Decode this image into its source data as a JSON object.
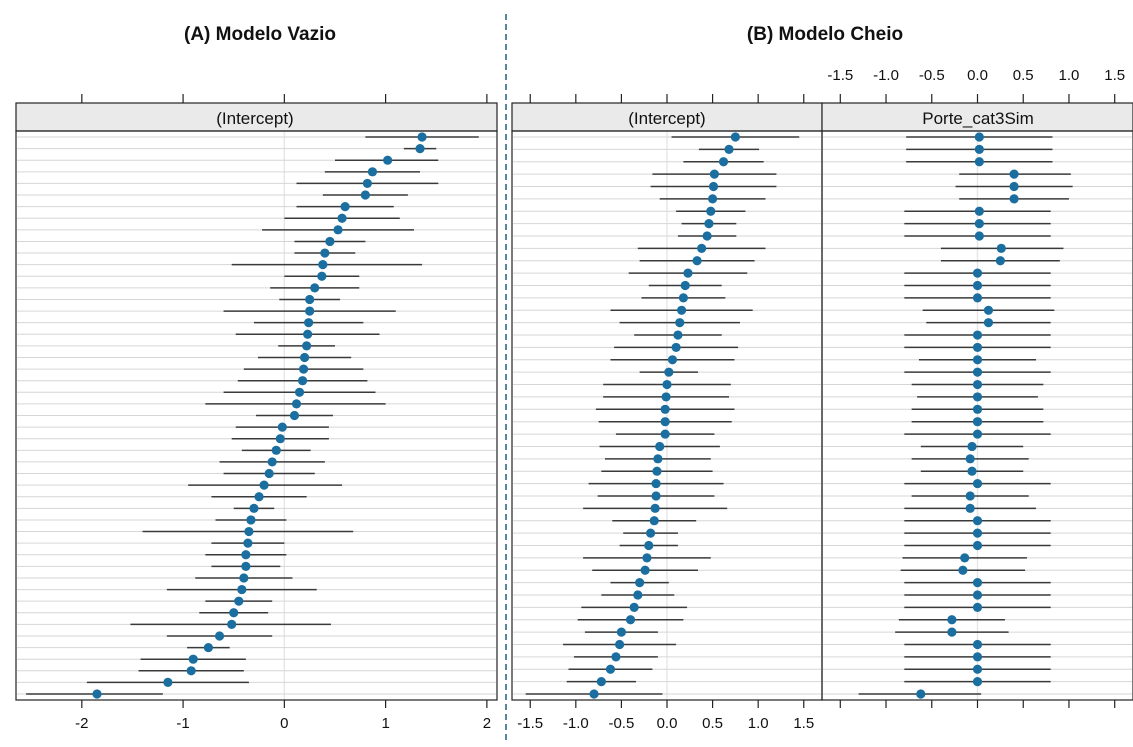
{
  "chart_data": [
    {
      "type": "dot-errorbar",
      "panel_label": "(A)  Modelo Vazio",
      "strip_labels": [
        "(Intercept)"
      ],
      "x_ticks": [
        -2,
        -1,
        0,
        1,
        2
      ],
      "xlim": [
        -2.65,
        2.1
      ],
      "x_ticks_position": "bottom",
      "top_axis_ticks": true,
      "grid": true,
      "points": {
        "(Intercept)": [
          {
            "est": 1.36,
            "lo": 0.8,
            "hi": 1.92
          },
          {
            "est": 1.34,
            "lo": 1.18,
            "hi": 1.5
          },
          {
            "est": 1.02,
            "lo": 0.5,
            "hi": 1.52
          },
          {
            "est": 0.87,
            "lo": 0.4,
            "hi": 1.34
          },
          {
            "est": 0.82,
            "lo": 0.12,
            "hi": 1.52
          },
          {
            "est": 0.8,
            "lo": 0.38,
            "hi": 1.22
          },
          {
            "est": 0.6,
            "lo": 0.12,
            "hi": 1.08
          },
          {
            "est": 0.57,
            "lo": 0.0,
            "hi": 1.14
          },
          {
            "est": 0.53,
            "lo": -0.22,
            "hi": 1.28
          },
          {
            "est": 0.45,
            "lo": 0.1,
            "hi": 0.8
          },
          {
            "est": 0.4,
            "lo": 0.1,
            "hi": 0.7
          },
          {
            "est": 0.38,
            "lo": -0.52,
            "hi": 1.36
          },
          {
            "est": 0.37,
            "lo": 0.0,
            "hi": 0.74
          },
          {
            "est": 0.3,
            "lo": -0.14,
            "hi": 0.74
          },
          {
            "est": 0.25,
            "lo": -0.05,
            "hi": 0.55
          },
          {
            "est": 0.25,
            "lo": -0.6,
            "hi": 1.1
          },
          {
            "est": 0.24,
            "lo": -0.3,
            "hi": 0.78
          },
          {
            "est": 0.23,
            "lo": -0.48,
            "hi": 0.94
          },
          {
            "est": 0.22,
            "lo": -0.06,
            "hi": 0.5
          },
          {
            "est": 0.2,
            "lo": -0.26,
            "hi": 0.66
          },
          {
            "est": 0.19,
            "lo": -0.4,
            "hi": 0.78
          },
          {
            "est": 0.18,
            "lo": -0.46,
            "hi": 0.82
          },
          {
            "est": 0.15,
            "lo": -0.6,
            "hi": 0.9
          },
          {
            "est": 0.12,
            "lo": -0.78,
            "hi": 1.0
          },
          {
            "est": 0.1,
            "lo": -0.28,
            "hi": 0.48
          },
          {
            "est": -0.02,
            "lo": -0.48,
            "hi": 0.44
          },
          {
            "est": -0.04,
            "lo": -0.52,
            "hi": 0.44
          },
          {
            "est": -0.08,
            "lo": -0.42,
            "hi": 0.26
          },
          {
            "est": -0.12,
            "lo": -0.64,
            "hi": 0.4
          },
          {
            "est": -0.15,
            "lo": -0.6,
            "hi": 0.3
          },
          {
            "est": -0.2,
            "lo": -0.95,
            "hi": 0.57
          },
          {
            "est": -0.25,
            "lo": -0.72,
            "hi": 0.22
          },
          {
            "est": -0.3,
            "lo": -0.5,
            "hi": -0.1
          },
          {
            "est": -0.33,
            "lo": -0.68,
            "hi": 0.02
          },
          {
            "est": -0.35,
            "lo": -1.4,
            "hi": 0.68
          },
          {
            "est": -0.36,
            "lo": -0.72,
            "hi": 0.0
          },
          {
            "est": -0.38,
            "lo": -0.78,
            "hi": 0.02
          },
          {
            "est": -0.38,
            "lo": -0.72,
            "hi": -0.04
          },
          {
            "est": -0.4,
            "lo": -0.88,
            "hi": 0.08
          },
          {
            "est": -0.42,
            "lo": -1.16,
            "hi": 0.32
          },
          {
            "est": -0.45,
            "lo": -0.78,
            "hi": -0.12
          },
          {
            "est": -0.5,
            "lo": -0.84,
            "hi": -0.16
          },
          {
            "est": -0.52,
            "lo": -1.52,
            "hi": 0.46
          },
          {
            "est": -0.64,
            "lo": -1.16,
            "hi": -0.12
          },
          {
            "est": -0.75,
            "lo": -0.96,
            "hi": -0.54
          },
          {
            "est": -0.9,
            "lo": -1.42,
            "hi": -0.38
          },
          {
            "est": -0.92,
            "lo": -1.44,
            "hi": -0.4
          },
          {
            "est": -1.15,
            "lo": -1.95,
            "hi": -0.35
          },
          {
            "est": -1.85,
            "lo": -2.55,
            "hi": -1.2
          }
        ]
      }
    },
    {
      "type": "dot-errorbar",
      "panel_label": "(B)  Modelo Cheio",
      "strip_labels": [
        "(Intercept)",
        "Porte_cat3Sim"
      ],
      "x_ticks": [
        -1.5,
        -1.0,
        -0.5,
        0.0,
        0.5,
        1.0,
        1.5
      ],
      "x_tick_labels": [
        "-1.5",
        "-1.0",
        "-0.5",
        "0.0",
        "0.5",
        "1.0",
        "1.5"
      ],
      "xlim": [
        -1.7,
        1.7
      ],
      "x_ticks_position": "alternating: bottom on (Intercept), top on Porte_cat3Sim",
      "grid": true,
      "points": {
        "(Intercept)": [
          {
            "est": 0.75,
            "lo": 0.05,
            "hi": 1.45
          },
          {
            "est": 0.68,
            "lo": 0.35,
            "hi": 1.01
          },
          {
            "est": 0.62,
            "lo": 0.18,
            "hi": 1.06
          },
          {
            "est": 0.52,
            "lo": -0.16,
            "hi": 1.2
          },
          {
            "est": 0.51,
            "lo": -0.18,
            "hi": 1.2
          },
          {
            "est": 0.5,
            "lo": -0.08,
            "hi": 1.08
          },
          {
            "est": 0.48,
            "lo": 0.1,
            "hi": 0.86
          },
          {
            "est": 0.46,
            "lo": 0.16,
            "hi": 0.76
          },
          {
            "est": 0.44,
            "lo": 0.12,
            "hi": 0.76
          },
          {
            "est": 0.38,
            "lo": -0.32,
            "hi": 1.08
          },
          {
            "est": 0.33,
            "lo": -0.3,
            "hi": 0.96
          },
          {
            "est": 0.23,
            "lo": -0.42,
            "hi": 0.88
          },
          {
            "est": 0.2,
            "lo": -0.2,
            "hi": 0.6
          },
          {
            "est": 0.18,
            "lo": -0.28,
            "hi": 0.64
          },
          {
            "est": 0.16,
            "lo": -0.62,
            "hi": 0.94
          },
          {
            "est": 0.14,
            "lo": -0.52,
            "hi": 0.8
          },
          {
            "est": 0.12,
            "lo": -0.36,
            "hi": 0.6
          },
          {
            "est": 0.1,
            "lo": -0.58,
            "hi": 0.78
          },
          {
            "est": 0.06,
            "lo": -0.62,
            "hi": 0.74
          },
          {
            "est": 0.02,
            "lo": -0.3,
            "hi": 0.34
          },
          {
            "est": 0.0,
            "lo": -0.7,
            "hi": 0.7
          },
          {
            "est": -0.01,
            "lo": -0.7,
            "hi": 0.68
          },
          {
            "est": -0.02,
            "lo": -0.78,
            "hi": 0.74
          },
          {
            "est": -0.02,
            "lo": -0.75,
            "hi": 0.71
          },
          {
            "est": -0.02,
            "lo": -0.56,
            "hi": 0.52
          },
          {
            "est": -0.08,
            "lo": -0.74,
            "hi": 0.58
          },
          {
            "est": -0.1,
            "lo": -0.68,
            "hi": 0.48
          },
          {
            "est": -0.11,
            "lo": -0.72,
            "hi": 0.5
          },
          {
            "est": -0.12,
            "lo": -0.86,
            "hi": 0.62
          },
          {
            "est": -0.12,
            "lo": -0.76,
            "hi": 0.52
          },
          {
            "est": -0.13,
            "lo": -0.92,
            "hi": 0.66
          },
          {
            "est": -0.14,
            "lo": -0.6,
            "hi": 0.32
          },
          {
            "est": -0.18,
            "lo": -0.48,
            "hi": 0.12
          },
          {
            "est": -0.2,
            "lo": -0.52,
            "hi": 0.12
          },
          {
            "est": -0.22,
            "lo": -0.92,
            "hi": 0.48
          },
          {
            "est": -0.24,
            "lo": -0.82,
            "hi": 0.34
          },
          {
            "est": -0.3,
            "lo": -0.62,
            "hi": 0.02
          },
          {
            "est": -0.32,
            "lo": -0.72,
            "hi": 0.08
          },
          {
            "est": -0.36,
            "lo": -0.94,
            "hi": 0.22
          },
          {
            "est": -0.4,
            "lo": -0.98,
            "hi": 0.18
          },
          {
            "est": -0.5,
            "lo": -0.9,
            "hi": -0.1
          },
          {
            "est": -0.52,
            "lo": -1.14,
            "hi": 0.1
          },
          {
            "est": -0.56,
            "lo": -1.02,
            "hi": -0.1
          },
          {
            "est": -0.62,
            "lo": -1.08,
            "hi": -0.16
          },
          {
            "est": -0.72,
            "lo": -1.1,
            "hi": -0.34
          },
          {
            "est": -0.8,
            "lo": -1.55,
            "hi": -0.05
          }
        ],
        "Porte_cat3Sim": [
          {
            "est": 0.02,
            "lo": -0.78,
            "hi": 0.82
          },
          {
            "est": 0.02,
            "lo": -0.78,
            "hi": 0.82
          },
          {
            "est": 0.02,
            "lo": -0.78,
            "hi": 0.82
          },
          {
            "est": 0.4,
            "lo": -0.2,
            "hi": 1.02
          },
          {
            "est": 0.4,
            "lo": -0.24,
            "hi": 1.04
          },
          {
            "est": 0.4,
            "lo": -0.2,
            "hi": 1.0
          },
          {
            "est": 0.02,
            "lo": -0.8,
            "hi": 0.8
          },
          {
            "est": 0.02,
            "lo": -0.8,
            "hi": 0.8
          },
          {
            "est": 0.02,
            "lo": -0.8,
            "hi": 0.8
          },
          {
            "est": 0.26,
            "lo": -0.4,
            "hi": 0.94
          },
          {
            "est": 0.25,
            "lo": -0.4,
            "hi": 0.9
          },
          {
            "est": 0.0,
            "lo": -0.8,
            "hi": 0.8
          },
          {
            "est": 0.0,
            "lo": -0.8,
            "hi": 0.8
          },
          {
            "est": 0.0,
            "lo": -0.8,
            "hi": 0.8
          },
          {
            "est": 0.12,
            "lo": -0.6,
            "hi": 0.84
          },
          {
            "est": 0.12,
            "lo": -0.56,
            "hi": 0.8
          },
          {
            "est": 0.0,
            "lo": -0.8,
            "hi": 0.8
          },
          {
            "est": 0.0,
            "lo": -0.8,
            "hi": 0.8
          },
          {
            "est": 0.0,
            "lo": -0.64,
            "hi": 0.64
          },
          {
            "est": 0.0,
            "lo": -0.8,
            "hi": 0.8
          },
          {
            "est": 0.0,
            "lo": -0.72,
            "hi": 0.72
          },
          {
            "est": 0.0,
            "lo": -0.66,
            "hi": 0.66
          },
          {
            "est": 0.0,
            "lo": -0.72,
            "hi": 0.72
          },
          {
            "est": 0.0,
            "lo": -0.72,
            "hi": 0.72
          },
          {
            "est": 0.0,
            "lo": -0.8,
            "hi": 0.8
          },
          {
            "est": -0.06,
            "lo": -0.62,
            "hi": 0.5
          },
          {
            "est": -0.08,
            "lo": -0.72,
            "hi": 0.56
          },
          {
            "est": -0.06,
            "lo": -0.62,
            "hi": 0.5
          },
          {
            "est": 0.0,
            "lo": -0.8,
            "hi": 0.8
          },
          {
            "est": -0.08,
            "lo": -0.72,
            "hi": 0.56
          },
          {
            "est": -0.08,
            "lo": -0.8,
            "hi": 0.64
          },
          {
            "est": 0.0,
            "lo": -0.8,
            "hi": 0.8
          },
          {
            "est": 0.0,
            "lo": -0.8,
            "hi": 0.8
          },
          {
            "est": 0.0,
            "lo": -0.8,
            "hi": 0.8
          },
          {
            "est": -0.14,
            "lo": -0.82,
            "hi": 0.54
          },
          {
            "est": -0.16,
            "lo": -0.84,
            "hi": 0.52
          },
          {
            "est": 0.0,
            "lo": -0.8,
            "hi": 0.8
          },
          {
            "est": 0.0,
            "lo": -0.8,
            "hi": 0.8
          },
          {
            "est": 0.0,
            "lo": -0.8,
            "hi": 0.8
          },
          {
            "est": -0.28,
            "lo": -0.86,
            "hi": 0.3
          },
          {
            "est": -0.28,
            "lo": -0.9,
            "hi": 0.34
          },
          {
            "est": 0.0,
            "lo": -0.8,
            "hi": 0.8
          },
          {
            "est": 0.0,
            "lo": -0.8,
            "hi": 0.8
          },
          {
            "est": 0.0,
            "lo": -0.8,
            "hi": 0.8
          },
          {
            "est": 0.0,
            "lo": -0.8,
            "hi": 0.8
          },
          {
            "est": -0.62,
            "lo": -1.3,
            "hi": 0.04
          }
        ]
      }
    }
  ],
  "colors": {
    "point": "#1b6fa0",
    "interval": "#3a3a3a",
    "strip_bg": "#eaeaea",
    "grid": "#d6d6d6",
    "divider": "#2b6a85",
    "text": "#111111"
  }
}
